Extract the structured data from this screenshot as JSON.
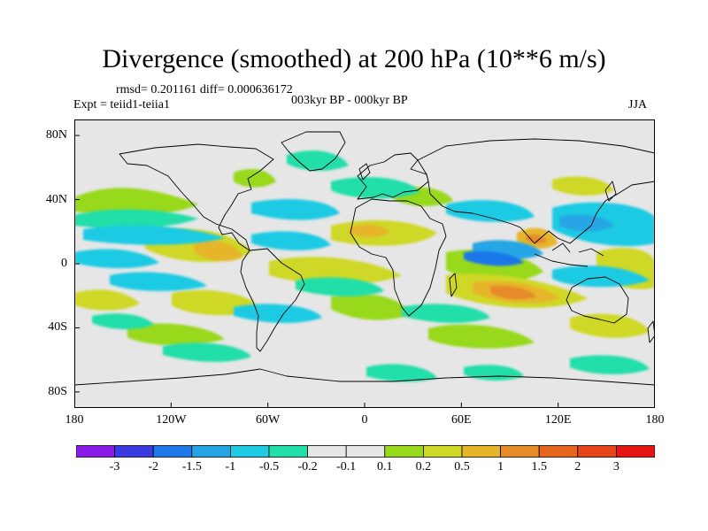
{
  "title": "Divergence (smoothed) at 200 hPa (10**6 m/s)",
  "stats_line": "rmsd= 0.201161 diff= 0.000636172",
  "experiment": "Expt = teiid1-teiia1",
  "period": "003kyr BP - 000kyr BP",
  "season": "JJA",
  "lat_labels": [
    {
      "text": "80N",
      "lat": 80
    },
    {
      "text": "40N",
      "lat": 40
    },
    {
      "text": "0",
      "lat": 0
    },
    {
      "text": "40S",
      "lat": -40
    },
    {
      "text": "80S",
      "lat": -80
    }
  ],
  "lon_labels": [
    {
      "text": "180",
      "lon": -180
    },
    {
      "text": "120W",
      "lon": -120
    },
    {
      "text": "60W",
      "lon": -60
    },
    {
      "text": "0",
      "lon": 0
    },
    {
      "text": "60E",
      "lon": 60
    },
    {
      "text": "120E",
      "lon": 120
    },
    {
      "text": "180",
      "lon": 180
    }
  ],
  "colorbar": {
    "labels": [
      "-3",
      "-2",
      "-1.5",
      "-1",
      "-0.5",
      "-0.2",
      "-0.1",
      "0.1",
      "0.2",
      "0.5",
      "1",
      "1.5",
      "2",
      "3"
    ],
    "colors": [
      "#8a1be8",
      "#3a3ae0",
      "#1f78e8",
      "#25a6e4",
      "#1ecbe3",
      "#22dea8",
      "#e6e6e6",
      "#98d91e",
      "#cfd827",
      "#e6b52a",
      "#e68a2a",
      "#e6651f",
      "#e6461a",
      "#e61414"
    ]
  },
  "colors": {
    "land_outline": "#000000",
    "background": "#e6e6e6"
  }
}
